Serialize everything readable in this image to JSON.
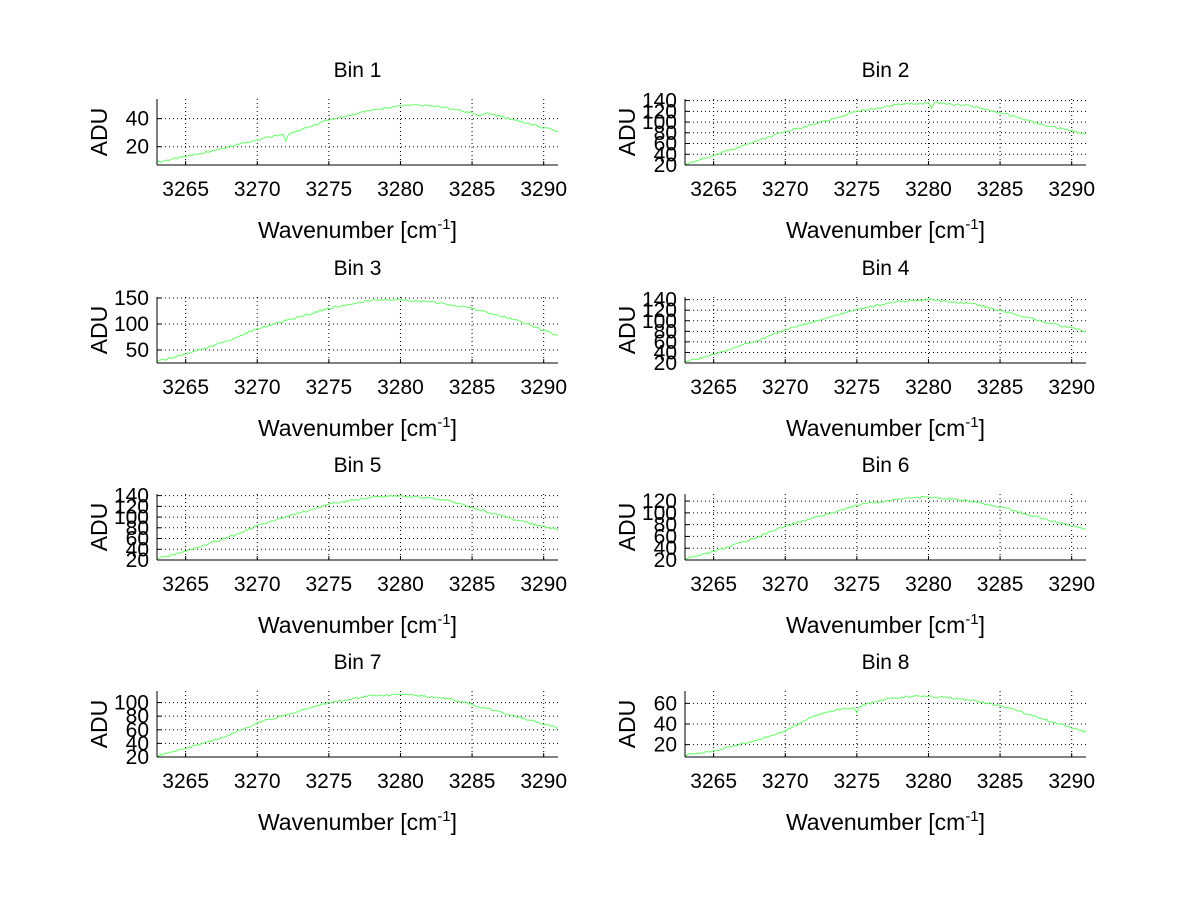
{
  "chart_data": [
    {
      "type": "line",
      "title": "Bin 1",
      "xlabel": "Wavenumber [cm",
      "xlabel_sup": "-1",
      "xlabel_end": "]",
      "ylabel": "ADU",
      "xlim": [
        3263,
        3291
      ],
      "ylim": [
        7,
        54
      ],
      "xticks": [
        3265,
        3270,
        3275,
        3280,
        3285,
        3290
      ],
      "yticks": [
        20,
        40
      ],
      "grid": true,
      "color": "#66ff66",
      "x": [
        3263,
        3265,
        3268,
        3270,
        3271.8,
        3272,
        3272.2,
        3275,
        3278,
        3280,
        3281,
        3283,
        3285,
        3285.5,
        3286,
        3288,
        3291
      ],
      "y": [
        9,
        13,
        20,
        25,
        29,
        24,
        29,
        39,
        46,
        49,
        50,
        48,
        44,
        42,
        44,
        39,
        31
      ]
    },
    {
      "type": "line",
      "title": "Bin 2",
      "xlabel": "Wavenumber [cm",
      "xlabel_sup": "-1",
      "xlabel_end": "]",
      "ylabel": "ADU",
      "xlim": [
        3263,
        3291
      ],
      "ylim": [
        20,
        143
      ],
      "xticks": [
        3265,
        3270,
        3275,
        3280,
        3285,
        3290
      ],
      "yticks": [
        20,
        40,
        60,
        80,
        100,
        120,
        140
      ],
      "grid": true,
      "color": "#66ff66",
      "x": [
        3263,
        3265,
        3268,
        3270,
        3273,
        3275,
        3278,
        3280,
        3280.2,
        3280.4,
        3283,
        3285,
        3288,
        3291
      ],
      "y": [
        22,
        38,
        64,
        82,
        103,
        120,
        133,
        136,
        126,
        136,
        130,
        118,
        95,
        78
      ]
    },
    {
      "type": "line",
      "title": "Bin 3",
      "xlabel": "Wavenumber [cm",
      "xlabel_sup": "-1",
      "xlabel_end": "]",
      "ylabel": "ADU",
      "xlim": [
        3263,
        3291
      ],
      "ylim": [
        25,
        152
      ],
      "xticks": [
        3265,
        3270,
        3275,
        3280,
        3285,
        3290
      ],
      "yticks": [
        50,
        100,
        150
      ],
      "grid": true,
      "color": "#66ff66",
      "x": [
        3263,
        3265,
        3268,
        3270,
        3273,
        3275,
        3278,
        3280,
        3283,
        3285,
        3288,
        3291
      ],
      "y": [
        28,
        42,
        68,
        91,
        114,
        130,
        146,
        147,
        140,
        130,
        108,
        78
      ]
    },
    {
      "type": "line",
      "title": "Bin 4",
      "xlabel": "Wavenumber [cm",
      "xlabel_sup": "-1",
      "xlabel_end": "]",
      "ylabel": "ADU",
      "xlim": [
        3263,
        3291
      ],
      "ylim": [
        20,
        145
      ],
      "xticks": [
        3265,
        3270,
        3275,
        3280,
        3285,
        3290
      ],
      "yticks": [
        20,
        40,
        60,
        80,
        100,
        120,
        140
      ],
      "grid": true,
      "color": "#66ff66",
      "x": [
        3263,
        3265,
        3268,
        3270,
        3273,
        3275,
        3278,
        3280,
        3283,
        3285,
        3288,
        3291
      ],
      "y": [
        22,
        36,
        62,
        83,
        106,
        122,
        137,
        140,
        133,
        120,
        98,
        80
      ]
    },
    {
      "type": "line",
      "title": "Bin 5",
      "xlabel": "Wavenumber [cm",
      "xlabel_sup": "-1",
      "xlabel_end": "]",
      "ylabel": "ADU",
      "xlim": [
        3263,
        3291
      ],
      "ylim": [
        20,
        143
      ],
      "xticks": [
        3265,
        3270,
        3275,
        3280,
        3285,
        3290
      ],
      "yticks": [
        20,
        40,
        60,
        80,
        100,
        120,
        140
      ],
      "grid": true,
      "color": "#66ff66",
      "x": [
        3263,
        3265,
        3268,
        3270,
        3273,
        3275,
        3278,
        3280,
        3283,
        3285,
        3288,
        3291
      ],
      "y": [
        22,
        36,
        62,
        84,
        108,
        124,
        137,
        140,
        133,
        118,
        95,
        76
      ]
    },
    {
      "type": "line",
      "title": "Bin 6",
      "xlabel": "Wavenumber [cm",
      "xlabel_sup": "-1",
      "xlabel_end": "]",
      "ylabel": "ADU",
      "xlim": [
        3263,
        3291
      ],
      "ylim": [
        20,
        132
      ],
      "xticks": [
        3265,
        3270,
        3275,
        3280,
        3285,
        3290
      ],
      "yticks": [
        20,
        40,
        60,
        80,
        100,
        120
      ],
      "grid": true,
      "color": "#66ff66",
      "x": [
        3263,
        3265,
        3268,
        3270,
        3273,
        3275,
        3278,
        3280,
        3283,
        3285,
        3288,
        3291
      ],
      "y": [
        22,
        34,
        58,
        78,
        98,
        113,
        124,
        127,
        120,
        110,
        90,
        72
      ]
    },
    {
      "type": "line",
      "title": "Bin 7",
      "xlabel": "Wavenumber [cm",
      "xlabel_sup": "-1",
      "xlabel_end": "]",
      "ylabel": "ADU",
      "xlim": [
        3263,
        3291
      ],
      "ylim": [
        20,
        117
      ],
      "xticks": [
        3265,
        3270,
        3275,
        3280,
        3285,
        3290
      ],
      "yticks": [
        20,
        40,
        60,
        80,
        100
      ],
      "grid": true,
      "color": "#66ff66",
      "x": [
        3263,
        3265,
        3268,
        3270,
        3273,
        3275,
        3278,
        3280,
        3283,
        3285,
        3288,
        3291
      ],
      "y": [
        22,
        32,
        52,
        70,
        88,
        100,
        110,
        112,
        107,
        97,
        80,
        63
      ]
    },
    {
      "type": "line",
      "title": "Bin 8",
      "xlabel": "Wavenumber [cm",
      "xlabel_sup": "-1",
      "xlabel_end": "]",
      "ylabel": "ADU",
      "xlim": [
        3263,
        3291
      ],
      "ylim": [
        8,
        72
      ],
      "xticks": [
        3265,
        3270,
        3275,
        3280,
        3285,
        3290
      ],
      "yticks": [
        20,
        40,
        60
      ],
      "grid": true,
      "color": "#66ff66",
      "x": [
        3263,
        3265,
        3268,
        3270,
        3272,
        3274,
        3274.8,
        3275,
        3275.2,
        3277,
        3279,
        3281,
        3283,
        3285,
        3288,
        3291
      ],
      "y": [
        10,
        14,
        24,
        33,
        48,
        55,
        56,
        51,
        57,
        64,
        67,
        66,
        63,
        58,
        45,
        32
      ]
    }
  ]
}
